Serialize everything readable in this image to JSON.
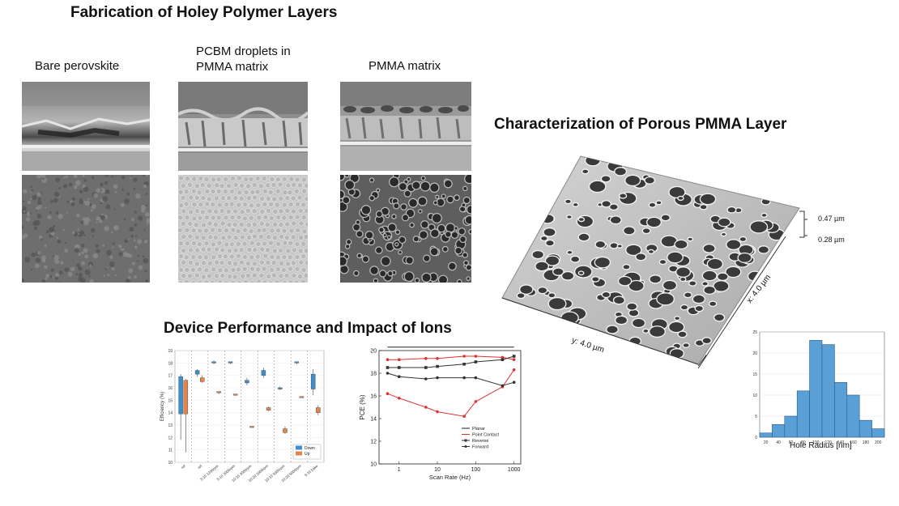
{
  "titles": {
    "fabrication": "Fabrication of Holey Polymer Layers",
    "characterization": "Characterization of Porous PMMA Layer",
    "device": "Device Performance and Impact of Ions"
  },
  "fabrication": {
    "columns": [
      {
        "label_lines": [
          "Bare perovskite"
        ]
      },
      {
        "label_lines": [
          "PCBM droplets in",
          "PMMA matrix"
        ]
      },
      {
        "label_lines": [
          "PMMA matrix"
        ]
      }
    ]
  },
  "afm": {
    "z_labels": [
      "0.47 µm",
      "0.28 µm"
    ],
    "x_axis_label": "x: 4.0 µm",
    "y_axis_label": "y: 4.0 µm"
  },
  "chart_data": [
    {
      "type": "bar",
      "xlabel": "Hole Radius [nm]",
      "ylabel": "",
      "x_ticks": [
        "20",
        "40",
        "60",
        "80",
        "100",
        "120",
        "140",
        "160",
        "180",
        "200"
      ],
      "y_ticks": [
        "0",
        "5",
        "10",
        "15",
        "20",
        "25"
      ],
      "ylim": [
        0,
        25
      ],
      "bins": [
        {
          "x": 20,
          "count": 1
        },
        {
          "x": 40,
          "count": 3
        },
        {
          "x": 60,
          "count": 5
        },
        {
          "x": 80,
          "count": 11
        },
        {
          "x": 100,
          "count": 23
        },
        {
          "x": 120,
          "count": 22
        },
        {
          "x": 140,
          "count": 13
        },
        {
          "x": 160,
          "count": 10
        },
        {
          "x": 180,
          "count": 4
        },
        {
          "x": 200,
          "count": 2
        }
      ],
      "bar_color": "#5aa0d6"
    },
    {
      "type": "line",
      "xlabel": "Scan Rate (Hz)",
      "ylabel": "PCE (%)",
      "x_scale": "log",
      "xlim": [
        0.3,
        1500
      ],
      "ylim": [
        10,
        20
      ],
      "x_ticks": [
        "1",
        "10",
        "100",
        "1000"
      ],
      "y_ticks": [
        "10",
        "12",
        "14",
        "16",
        "18",
        "20"
      ],
      "legend_position": "bottom-right",
      "series": [
        {
          "name": "Planar",
          "color": "#222222",
          "marker": "none",
          "x": [
            0.5,
            1,
            5,
            10,
            50,
            100,
            500,
            1000
          ],
          "y": [
            20.6,
            20.6,
            20.6,
            20.6,
            20.6,
            20.6,
            20.6,
            20.6
          ]
        },
        {
          "name": "Point Contact",
          "color": "#e03030",
          "marker": "circle",
          "x": [
            0.5,
            1,
            5,
            10,
            50,
            100,
            500,
            1000
          ],
          "y": [
            19.2,
            19.2,
            19.3,
            19.3,
            19.5,
            19.5,
            19.4,
            19.2
          ]
        },
        {
          "name": "Point Contact",
          "color": "#e03030",
          "marker": "circle",
          "x": [
            0.5,
            1,
            5,
            10,
            50,
            100,
            500,
            1000
          ],
          "y": [
            16.2,
            15.8,
            15.0,
            14.6,
            14.2,
            15.5,
            16.8,
            18.3
          ]
        },
        {
          "name": "Reverse",
          "color": "#333333",
          "marker": "square",
          "x": [
            0.5,
            1,
            5,
            10,
            50,
            100,
            500,
            1000
          ],
          "y": [
            18.5,
            18.5,
            18.5,
            18.6,
            18.8,
            19.0,
            19.2,
            19.5
          ]
        },
        {
          "name": "Forward",
          "color": "#333333",
          "marker": "circle",
          "x": [
            0.5,
            1,
            5,
            10,
            50,
            100,
            500,
            1000
          ],
          "y": [
            18.0,
            17.7,
            17.5,
            17.6,
            17.6,
            17.6,
            16.9,
            17.2
          ]
        }
      ]
    },
    {
      "type": "box",
      "ylabel": "Efficiency (%)",
      "ylim": [
        10,
        19
      ],
      "y_ticks": [
        "10",
        "11",
        "12",
        "13",
        "14",
        "15",
        "16",
        "17",
        "18",
        "19"
      ],
      "categories": [
        "ref",
        "ref",
        "5:10 1200rpm",
        "5:10 2000rpm",
        "10:10 2000rpm",
        "10:20 2000rpm",
        "10:10 5000rpm",
        "10:20 5000rpm",
        "5:10 bake"
      ],
      "legend_position": "bottom-right",
      "series": [
        {
          "name": "Down",
          "color": "#3a8fd0",
          "boxes": [
            [
              11.8,
              13.9,
              16.9,
              17.1
            ],
            [
              16.9,
              17.1,
              17.4,
              17.5
            ],
            [
              17.9,
              18.0,
              18.1,
              18.2
            ],
            [
              17.9,
              18.0,
              18.1,
              18.1
            ],
            [
              16.2,
              16.4,
              16.6,
              16.8
            ],
            [
              16.8,
              17.0,
              17.4,
              17.6
            ],
            [
              15.8,
              15.9,
              16.0,
              16.1
            ],
            [
              17.9,
              18.0,
              18.1,
              18.1
            ],
            [
              15.4,
              15.9,
              17.1,
              17.5
            ]
          ]
        },
        {
          "name": "Up",
          "color": "#e8824a",
          "boxes": [
            [
              10.8,
              13.9,
              16.6,
              16.7
            ],
            [
              16.4,
              16.5,
              16.8,
              17.0
            ],
            [
              15.5,
              15.6,
              15.7,
              15.7
            ],
            [
              15.4,
              15.4,
              15.5,
              15.5
            ],
            [
              12.8,
              12.9,
              12.9,
              12.9
            ],
            [
              14.1,
              14.2,
              14.4,
              14.5
            ],
            [
              12.3,
              12.4,
              12.7,
              12.9
            ],
            [
              15.2,
              15.2,
              15.3,
              15.3
            ],
            [
              13.8,
              14.0,
              14.4,
              14.6
            ]
          ]
        }
      ]
    }
  ]
}
